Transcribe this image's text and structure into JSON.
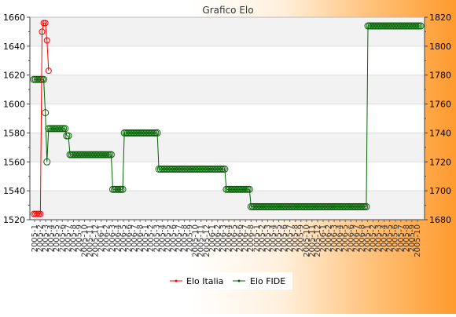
{
  "chart_data": {
    "type": "line",
    "title": "Grafico Elo",
    "grid": true,
    "legend_placement": "bottom-center",
    "y_left": {
      "min": 1520,
      "max": 1660,
      "ticks": [
        1520,
        1540,
        1560,
        1580,
        1600,
        1620,
        1640,
        1660
      ]
    },
    "y_right": {
      "min": 1680,
      "max": 1820,
      "ticks": [
        1680,
        1700,
        1720,
        1740,
        1760,
        1780,
        1800,
        1820
      ]
    },
    "x_tick_labels": [
      "2005-1",
      "2005-2",
      "2005-3",
      "2005-4",
      "2005-5",
      "2005-6",
      "2005-7",
      "2005-8",
      "2005-9",
      "2005-10",
      "2005-11",
      "2005-12",
      "2006-1",
      "2006-2",
      "2006-3",
      "2006-4",
      "2006-5",
      "2006-6",
      "2006-7",
      "2006-8"
    ],
    "series": [
      {
        "name": "Elo Italia",
        "axis": "left",
        "color": "#ff0000",
        "values": [
          1524,
          1524,
          1524,
          1524,
          1524,
          1650,
          1656,
          1656,
          1644,
          1623
        ]
      },
      {
        "name": "Elo FIDE",
        "axis": "right",
        "color": "#006400",
        "values": [
          1777,
          1777,
          1777,
          1777,
          1777,
          1777,
          1777,
          1754,
          1720,
          1743,
          1743,
          1743,
          1743,
          1743,
          1743,
          1743,
          1743,
          1743,
          1743,
          1743,
          1738,
          1738,
          1725,
          1725,
          1725,
          1725,
          1725,
          1725,
          1725,
          1725,
          1725,
          1725,
          1725,
          1725,
          1725,
          1725,
          1725,
          1725,
          1725,
          1725,
          1725,
          1725,
          1725,
          1725,
          1725,
          1725,
          1725,
          1725,
          1701,
          1701,
          1701,
          1701,
          1701,
          1701,
          1701,
          1740,
          1740,
          1740,
          1740,
          1740,
          1740,
          1740,
          1740,
          1740,
          1740,
          1740,
          1740,
          1740,
          1740,
          1740,
          1740,
          1740,
          1740,
          1740,
          1740,
          1740,
          1715,
          1715,
          1715,
          1715,
          1715,
          1715,
          1715,
          1715,
          1715,
          1715,
          1715,
          1715,
          1715,
          1715,
          1715,
          1715,
          1715,
          1715,
          1715,
          1715,
          1715,
          1715,
          1715,
          1715,
          1715,
          1715,
          1715,
          1715,
          1715,
          1715,
          1715,
          1715,
          1715,
          1715,
          1715,
          1715,
          1715,
          1715,
          1715,
          1715,
          1715,
          1701,
          1701,
          1701,
          1701,
          1701,
          1701,
          1701,
          1701,
          1701,
          1701,
          1701,
          1701,
          1701,
          1701,
          1701,
          1689,
          1689,
          1689,
          1689,
          1689,
          1689,
          1689,
          1689,
          1689,
          1689,
          1689,
          1689,
          1689,
          1689,
          1689,
          1689,
          1689,
          1689,
          1689,
          1689,
          1689,
          1689,
          1689,
          1689,
          1689,
          1689,
          1689,
          1689,
          1689,
          1689,
          1689,
          1689,
          1689,
          1689,
          1689,
          1689,
          1689,
          1689,
          1689,
          1689,
          1689,
          1689,
          1689,
          1689,
          1689,
          1689,
          1689,
          1689,
          1689,
          1689,
          1689,
          1689,
          1689,
          1689,
          1689,
          1689,
          1689,
          1689,
          1689,
          1689,
          1689,
          1689,
          1689,
          1689,
          1689,
          1689,
          1689,
          1689,
          1689,
          1689,
          1689,
          1814,
          1814,
          1814,
          1814,
          1814,
          1814,
          1814,
          1814,
          1814,
          1814,
          1814,
          1814,
          1814,
          1814,
          1814,
          1814,
          1814,
          1814,
          1814,
          1814,
          1814,
          1814,
          1814,
          1814,
          1814,
          1814,
          1814,
          1814,
          1814,
          1814,
          1814,
          1814,
          1814
        ]
      }
    ]
  }
}
